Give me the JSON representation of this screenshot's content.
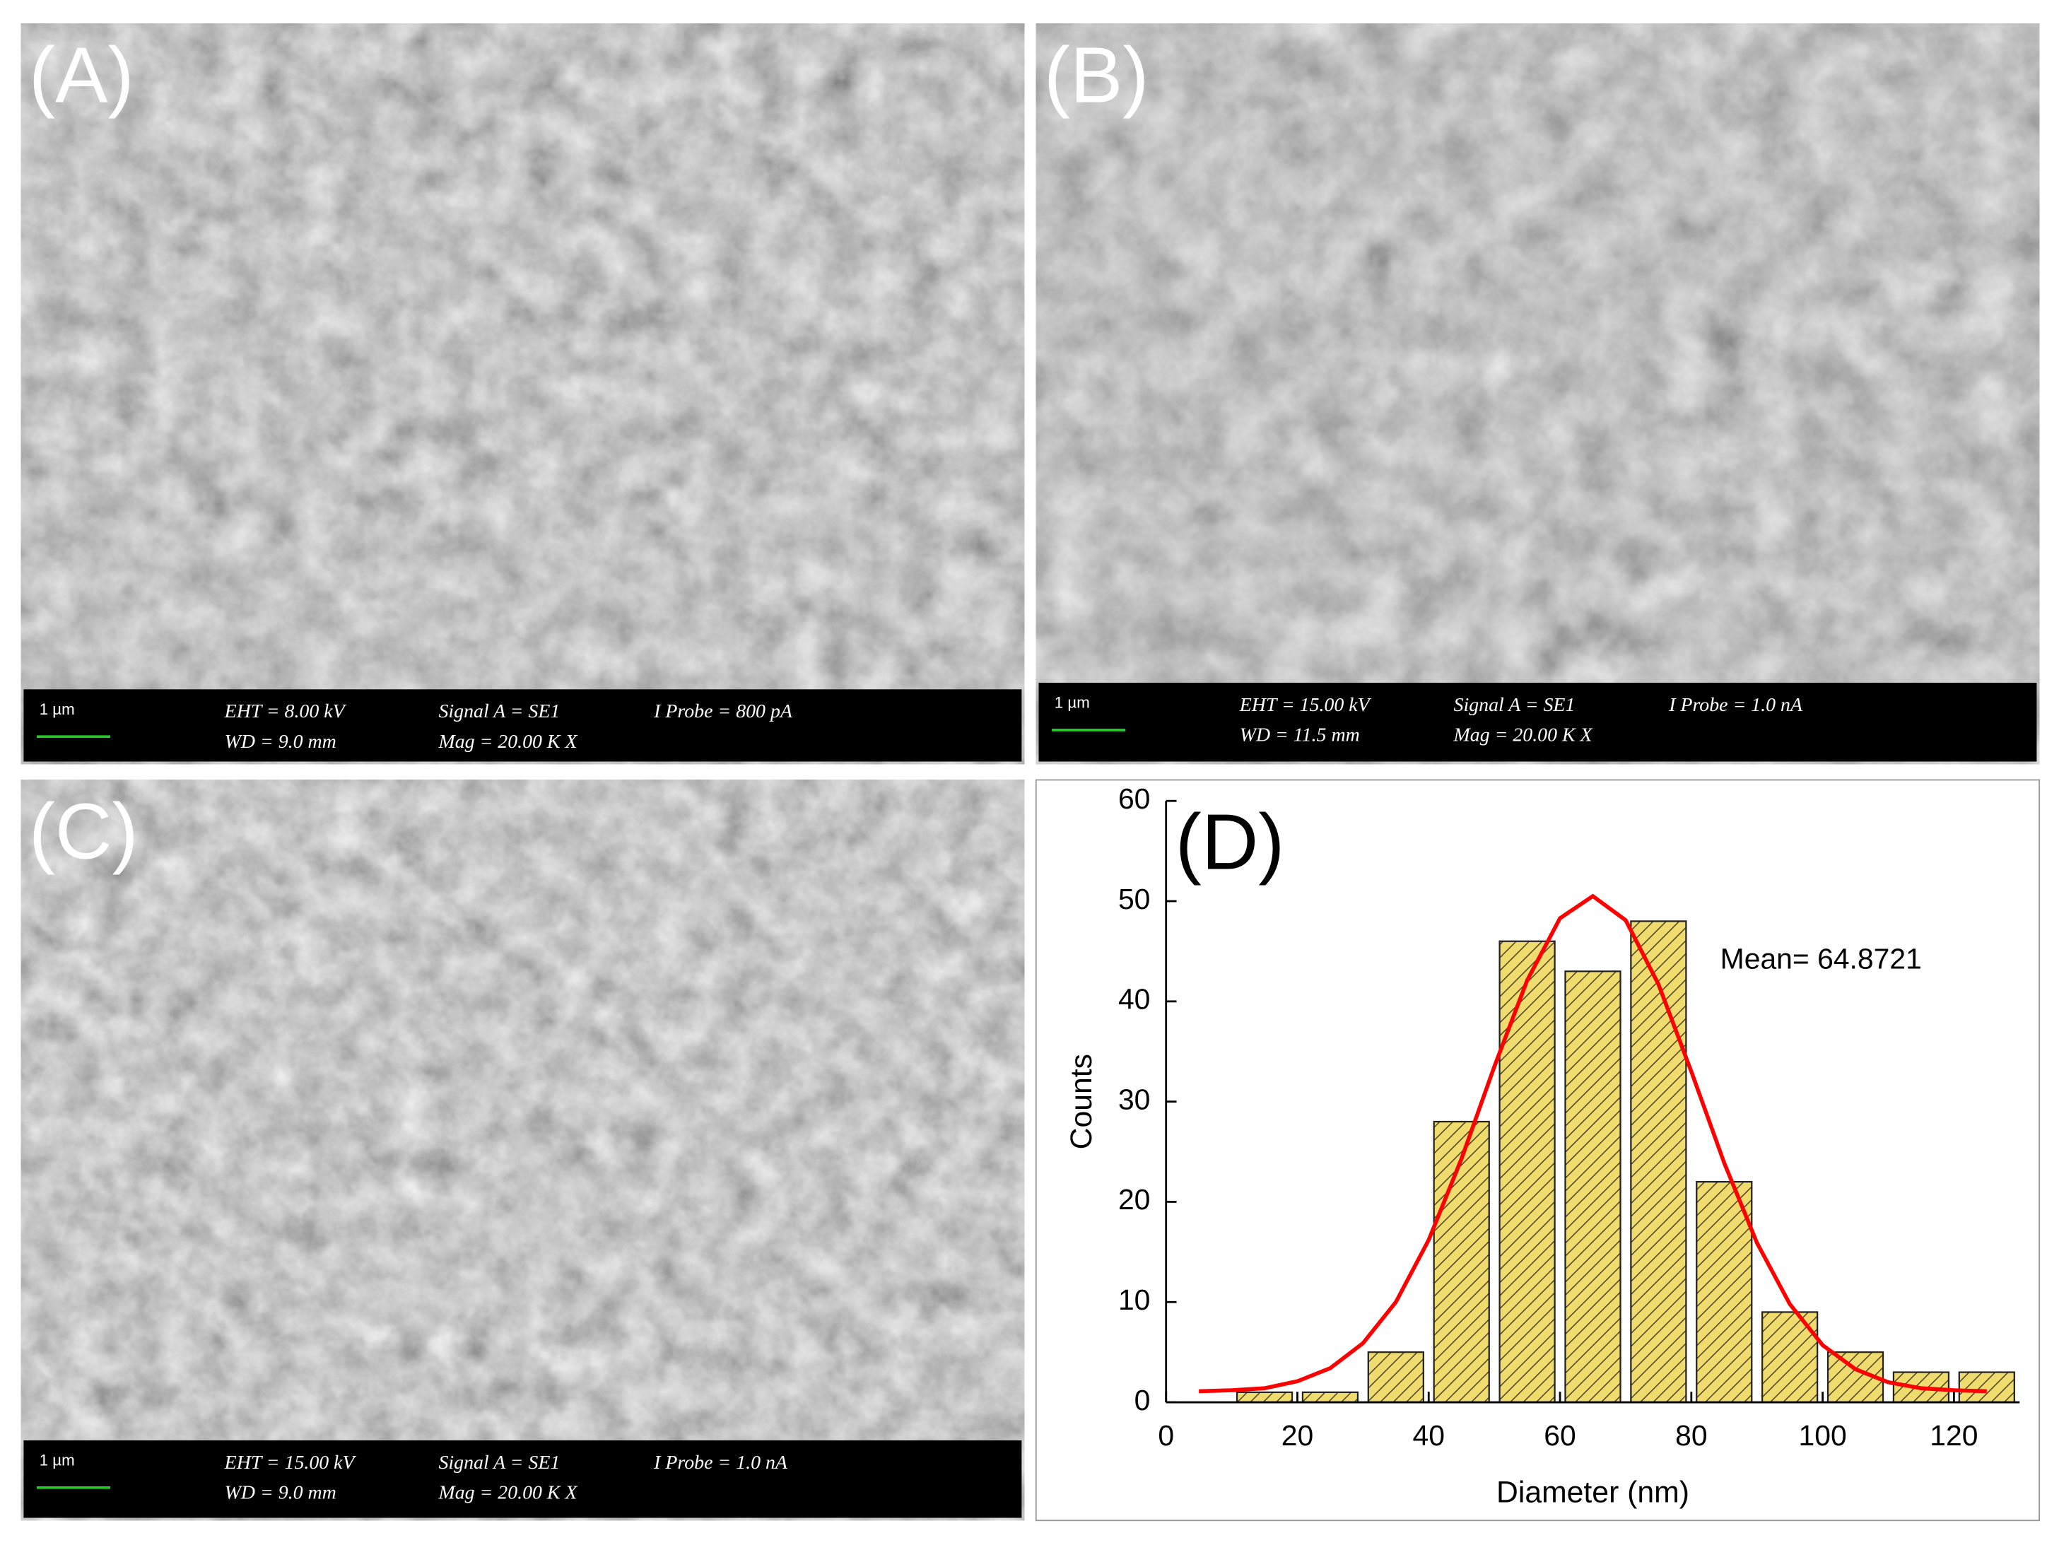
{
  "panels": [
    {
      "label": "(A)",
      "scale": "1 µm",
      "eht": "EHT = 8.00 kV",
      "wd": "WD = 9.0 mm",
      "signal": "Signal A = SE1",
      "mag": "Mag = 20.00 K X",
      "probe": "I Probe = 800 pA"
    },
    {
      "label": "(B)",
      "scale": "1 µm",
      "eht": "EHT = 15.00 kV",
      "wd": "WD = 11.5 mm",
      "signal": "Signal A = SE1",
      "mag": "Mag = 20.00 K X",
      "probe": "I Probe = 1.0 nA"
    },
    {
      "label": "(C)",
      "scale": "1 µm",
      "eht": "EHT = 15.00 kV",
      "wd": "WD = 9.0 mm",
      "signal": "Signal A = SE1",
      "mag": "Mag = 20.00 K X",
      "probe": "I Probe = 1.0 nA"
    }
  ],
  "chart_data": {
    "type": "histogram",
    "label": "(D)",
    "xlabel": "Diameter (nm)",
    "ylabel": "Counts",
    "annotation": "Mean= 64.8721",
    "bins": [
      10,
      20,
      30,
      40,
      50,
      60,
      70,
      80,
      90,
      100,
      110,
      120,
      130
    ],
    "values": [
      1,
      1,
      5,
      28,
      46,
      43,
      48,
      22,
      9,
      5,
      3,
      3
    ],
    "color": "#f0dc6e",
    "fit": {
      "color": "#ff0000",
      "x": [
        5,
        10,
        15,
        20,
        25,
        30,
        35,
        40,
        45,
        50,
        55,
        60,
        65,
        70,
        75,
        80,
        85,
        90,
        95,
        100,
        105,
        110,
        115,
        120,
        125
      ],
      "values": [
        1.1,
        1.2,
        1.4,
        2.1,
        3.4,
        5.9,
        10.0,
        16.2,
        24.3,
        33.5,
        42.1,
        48.3,
        50.5,
        48.1,
        41.7,
        33.0,
        23.9,
        15.9,
        9.8,
        5.7,
        3.3,
        2.0,
        1.4,
        1.2,
        1.1
      ]
    },
    "xlim": [
      0,
      130
    ],
    "ylim": [
      0,
      60
    ],
    "xticks": [
      0,
      20,
      40,
      60,
      80,
      100,
      120
    ],
    "yticks": [
      0,
      10,
      20,
      30,
      40,
      50,
      60
    ]
  }
}
